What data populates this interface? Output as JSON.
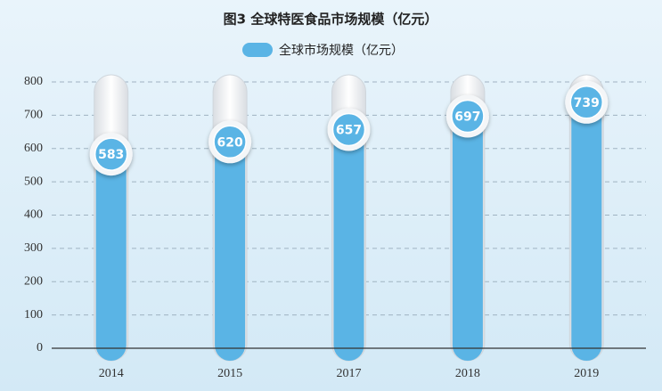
{
  "chart_data": {
    "type": "bar",
    "title": "图3 全球特医食品市场规模（亿元）",
    "categories": [
      "2014",
      "2015",
      "2017",
      "2018",
      "2019"
    ],
    "series": [
      {
        "name": "全球市场规模（亿元）",
        "color": "#5ab4e5",
        "values": [
          583,
          620,
          657,
          697,
          739
        ]
      }
    ],
    "ylim": [
      0,
      800
    ],
    "yticks": [
      0,
      100,
      200,
      300,
      400,
      500,
      600,
      700,
      800
    ],
    "grid": true
  }
}
